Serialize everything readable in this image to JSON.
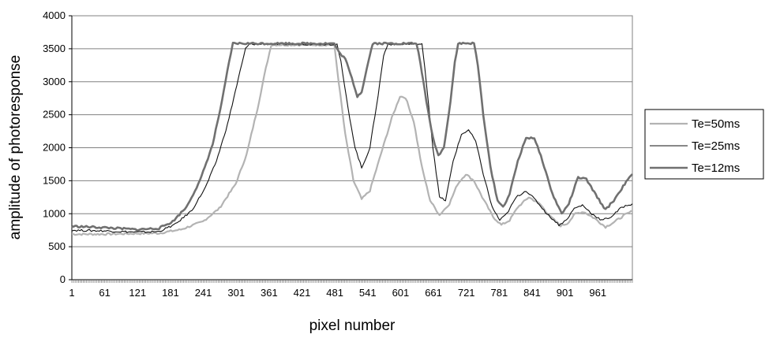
{
  "chart_data": {
    "type": "line",
    "title": "",
    "xlabel": "pixel number",
    "ylabel": "amplitude of photoresponse",
    "xlim": [
      1,
      1024
    ],
    "ylim": [
      0,
      4000
    ],
    "y_ticks": [
      0,
      500,
      1000,
      1500,
      2000,
      2500,
      3000,
      3500,
      4000
    ],
    "x_tick_labels": [
      1,
      61,
      121,
      181,
      241,
      301,
      361,
      421,
      481,
      541,
      601,
      661,
      721,
      781,
      841,
      901,
      961
    ],
    "grid": "horizontal",
    "legend_position": "right",
    "series": [
      {
        "name": "Te=50ms",
        "color": "#b3b3b3",
        "points": [
          [
            1,
            690
          ],
          [
            60,
            690
          ],
          [
            120,
            700
          ],
          [
            160,
            705
          ],
          [
            200,
            760
          ],
          [
            240,
            880
          ],
          [
            270,
            1080
          ],
          [
            300,
            1450
          ],
          [
            320,
            1900
          ],
          [
            340,
            2600
          ],
          [
            355,
            3200
          ],
          [
            365,
            3560
          ],
          [
            480,
            3560
          ],
          [
            488,
            3000
          ],
          [
            500,
            2200
          ],
          [
            515,
            1500
          ],
          [
            530,
            1220
          ],
          [
            545,
            1350
          ],
          [
            565,
            1900
          ],
          [
            585,
            2450
          ],
          [
            600,
            2780
          ],
          [
            610,
            2760
          ],
          [
            625,
            2400
          ],
          [
            640,
            1700
          ],
          [
            655,
            1200
          ],
          [
            672,
            980
          ],
          [
            690,
            1150
          ],
          [
            705,
            1450
          ],
          [
            720,
            1600
          ],
          [
            735,
            1500
          ],
          [
            750,
            1250
          ],
          [
            770,
            950
          ],
          [
            785,
            830
          ],
          [
            800,
            900
          ],
          [
            815,
            1100
          ],
          [
            835,
            1250
          ],
          [
            855,
            1150
          ],
          [
            875,
            950
          ],
          [
            893,
            820
          ],
          [
            905,
            850
          ],
          [
            920,
            1000
          ],
          [
            935,
            1030
          ],
          [
            955,
            930
          ],
          [
            975,
            800
          ],
          [
            990,
            870
          ],
          [
            1010,
            980
          ],
          [
            1024,
            1040
          ]
        ]
      },
      {
        "name": "Te=25ms",
        "color": "#111111",
        "points": [
          [
            1,
            750
          ],
          [
            60,
            740
          ],
          [
            120,
            720
          ],
          [
            160,
            730
          ],
          [
            190,
            840
          ],
          [
            220,
            1050
          ],
          [
            245,
            1400
          ],
          [
            265,
            1800
          ],
          [
            285,
            2350
          ],
          [
            305,
            3050
          ],
          [
            318,
            3500
          ],
          [
            325,
            3570
          ],
          [
            485,
            3570
          ],
          [
            492,
            3300
          ],
          [
            505,
            2600
          ],
          [
            518,
            2000
          ],
          [
            530,
            1690
          ],
          [
            545,
            2000
          ],
          [
            560,
            2800
          ],
          [
            570,
            3400
          ],
          [
            578,
            3570
          ],
          [
            640,
            3570
          ],
          [
            648,
            3000
          ],
          [
            660,
            2000
          ],
          [
            672,
            1250
          ],
          [
            683,
            1200
          ],
          [
            697,
            1800
          ],
          [
            712,
            2200
          ],
          [
            725,
            2270
          ],
          [
            738,
            2100
          ],
          [
            752,
            1600
          ],
          [
            768,
            1100
          ],
          [
            782,
            900
          ],
          [
            795,
            1000
          ],
          [
            812,
            1250
          ],
          [
            830,
            1350
          ],
          [
            848,
            1200
          ],
          [
            868,
            1000
          ],
          [
            890,
            830
          ],
          [
            903,
            900
          ],
          [
            918,
            1080
          ],
          [
            933,
            1130
          ],
          [
            950,
            1000
          ],
          [
            968,
            900
          ],
          [
            985,
            950
          ],
          [
            1005,
            1100
          ],
          [
            1024,
            1150
          ]
        ]
      },
      {
        "name": "Te=12ms",
        "color": "#707070",
        "points": [
          [
            1,
            810
          ],
          [
            60,
            790
          ],
          [
            120,
            760
          ],
          [
            160,
            780
          ],
          [
            185,
            880
          ],
          [
            210,
            1100
          ],
          [
            235,
            1500
          ],
          [
            258,
            2050
          ],
          [
            275,
            2700
          ],
          [
            288,
            3300
          ],
          [
            295,
            3580
          ],
          [
            470,
            3580
          ],
          [
            480,
            3580
          ],
          [
            488,
            3450
          ],
          [
            500,
            3350
          ],
          [
            512,
            3050
          ],
          [
            522,
            2780
          ],
          [
            530,
            2850
          ],
          [
            542,
            3300
          ],
          [
            550,
            3580
          ],
          [
            630,
            3580
          ],
          [
            637,
            3300
          ],
          [
            648,
            2700
          ],
          [
            660,
            2150
          ],
          [
            670,
            1880
          ],
          [
            680,
            2000
          ],
          [
            692,
            2700
          ],
          [
            700,
            3300
          ],
          [
            706,
            3580
          ],
          [
            735,
            3580
          ],
          [
            742,
            3250
          ],
          [
            752,
            2500
          ],
          [
            765,
            1700
          ],
          [
            778,
            1200
          ],
          [
            788,
            1100
          ],
          [
            800,
            1300
          ],
          [
            815,
            1800
          ],
          [
            830,
            2150
          ],
          [
            845,
            2150
          ],
          [
            860,
            1800
          ],
          [
            878,
            1300
          ],
          [
            895,
            1000
          ],
          [
            908,
            1150
          ],
          [
            925,
            1550
          ],
          [
            940,
            1520
          ],
          [
            960,
            1250
          ],
          [
            975,
            1060
          ],
          [
            990,
            1200
          ],
          [
            1010,
            1450
          ],
          [
            1024,
            1600
          ]
        ]
      }
    ]
  }
}
